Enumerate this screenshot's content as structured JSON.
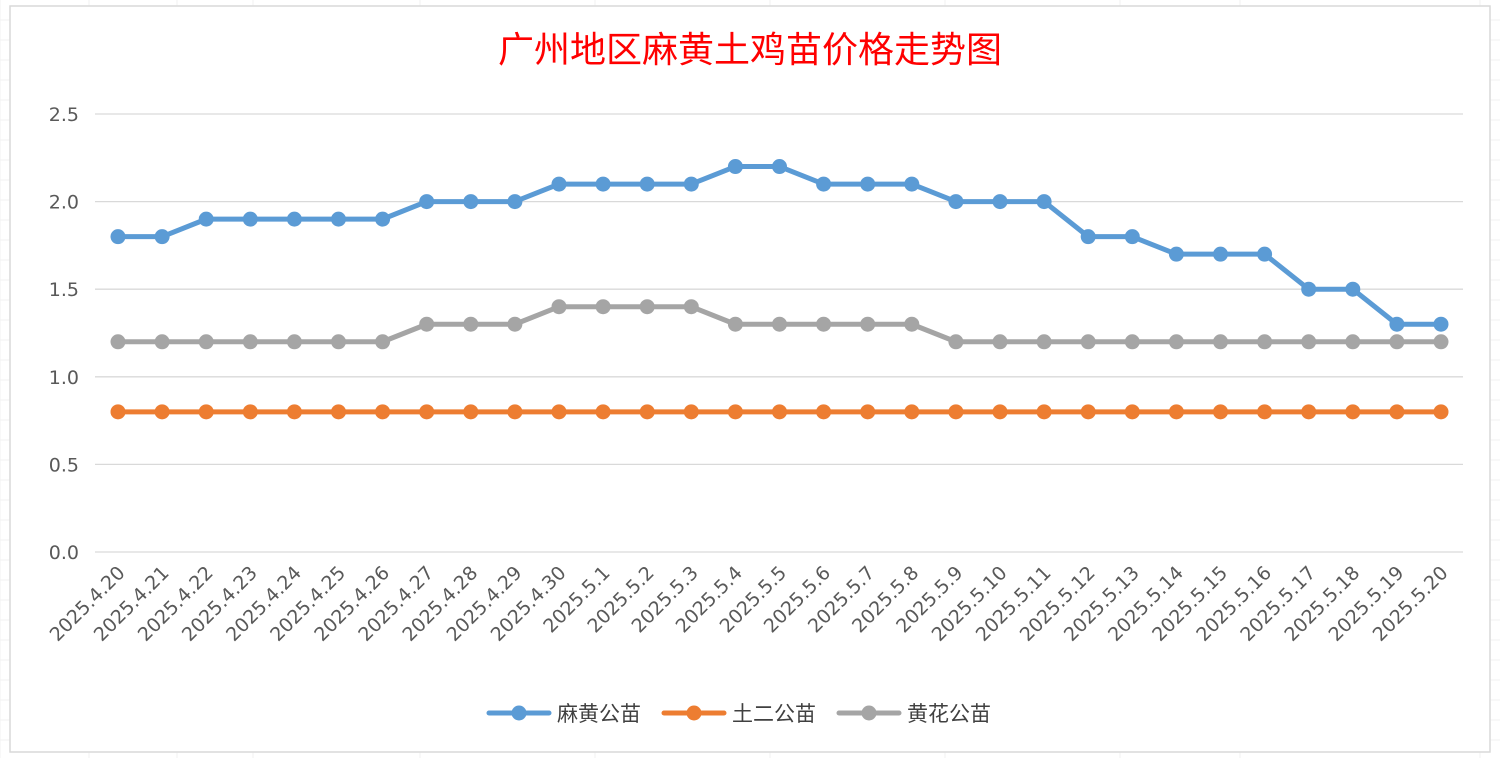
{
  "chart_data": {
    "type": "line",
    "title": "广州地区麻黄土鸡苗价格走势图",
    "xlabel": "",
    "ylabel": "",
    "ylim": [
      0,
      2.5
    ],
    "yticks": [
      "0.0",
      "0.5",
      "1.0",
      "1.5",
      "2.0",
      "2.5"
    ],
    "grid": true,
    "legend_position": "bottom",
    "categories": [
      "2025.4.20",
      "2025.4.21",
      "2025.4.22",
      "2025.4.23",
      "2025.4.24",
      "2025.4.25",
      "2025.4.26",
      "2025.4.27",
      "2025.4.28",
      "2025.4.29",
      "2025.4.30",
      "2025.5.1",
      "2025.5.2",
      "2025.5.3",
      "2025.5.4",
      "2025.5.5",
      "2025.5.6",
      "2025.5.7",
      "2025.5.8",
      "2025.5.9",
      "2025.5.10",
      "2025.5.11",
      "2025.5.12",
      "2025.5.13",
      "2025.5.14",
      "2025.5.15",
      "2025.5.16",
      "2025.5.17",
      "2025.5.18",
      "2025.5.19",
      "2025.5.20"
    ],
    "series": [
      {
        "name": "麻黄公苗",
        "color": "#5b9bd5",
        "values": [
          1.8,
          1.8,
          1.9,
          1.9,
          1.9,
          1.9,
          1.9,
          2.0,
          2.0,
          2.0,
          2.1,
          2.1,
          2.1,
          2.1,
          2.2,
          2.2,
          2.1,
          2.1,
          2.1,
          2.0,
          2.0,
          2.0,
          1.8,
          1.8,
          1.7,
          1.7,
          1.7,
          1.5,
          1.5,
          1.3,
          1.3
        ]
      },
      {
        "name": "土二公苗",
        "color": "#ed7d31",
        "values": [
          0.8,
          0.8,
          0.8,
          0.8,
          0.8,
          0.8,
          0.8,
          0.8,
          0.8,
          0.8,
          0.8,
          0.8,
          0.8,
          0.8,
          0.8,
          0.8,
          0.8,
          0.8,
          0.8,
          0.8,
          0.8,
          0.8,
          0.8,
          0.8,
          0.8,
          0.8,
          0.8,
          0.8,
          0.8,
          0.8,
          0.8
        ]
      },
      {
        "name": "黄花公苗",
        "color": "#a5a5a5",
        "values": [
          1.2,
          1.2,
          1.2,
          1.2,
          1.2,
          1.2,
          1.2,
          1.3,
          1.3,
          1.3,
          1.4,
          1.4,
          1.4,
          1.4,
          1.3,
          1.3,
          1.3,
          1.3,
          1.3,
          1.2,
          1.2,
          1.2,
          1.2,
          1.2,
          1.2,
          1.2,
          1.2,
          1.2,
          1.2,
          1.2,
          1.2
        ]
      }
    ],
    "colors": {
      "title": "#ff0000",
      "gridline": "#d9d9d9",
      "tick_text": "#595959",
      "frame": "#d9d9d9"
    }
  }
}
